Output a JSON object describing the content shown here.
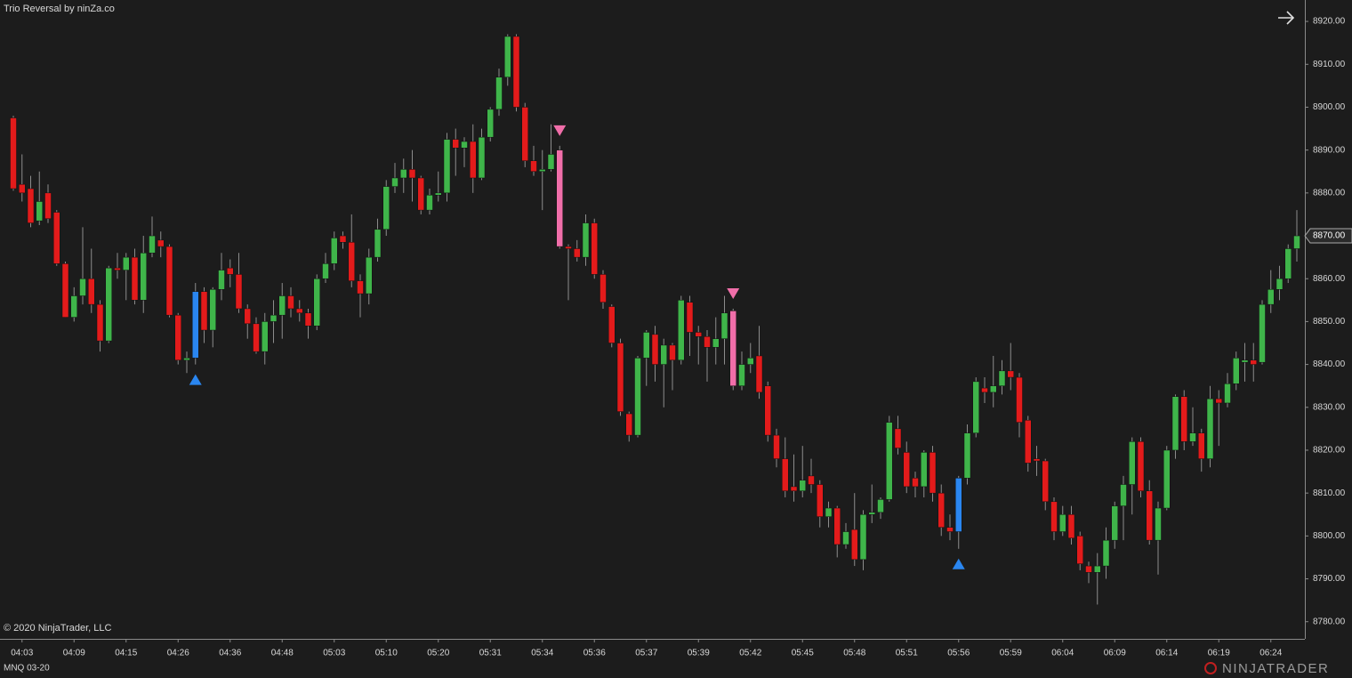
{
  "chart_data": {
    "type": "candlestick",
    "title": "Trio Reversal by ninZa.co",
    "copyright": "© 2020 NinjaTrader, LLC",
    "instrument": "MNQ 03-20",
    "logo": "NINJATRADER",
    "up_color": "#3fb54a",
    "down_color": "#e31b1b",
    "wick_color": "#8c8c8c",
    "categories": [
      null,
      "04:03",
      null,
      null,
      null,
      null,
      null,
      "04:09",
      null,
      null,
      null,
      null,
      null,
      "04:15",
      null,
      null,
      null,
      null,
      null,
      "04:26",
      null,
      null,
      null,
      null,
      null,
      "04:36",
      null,
      null,
      null,
      null,
      null,
      "04:48",
      null,
      null,
      null,
      null,
      null,
      "05:03",
      null,
      null,
      null,
      null,
      null,
      "05:10",
      null,
      null,
      null,
      null,
      null,
      "05:20",
      null,
      null,
      null,
      null,
      null,
      "05:31",
      null,
      null,
      null,
      null,
      null,
      "05:34",
      null,
      null,
      null,
      null,
      null,
      "05:36",
      null,
      null,
      null,
      null,
      null,
      "05:37",
      null,
      null,
      null,
      null,
      null,
      "05:39",
      null,
      null,
      null,
      null,
      null,
      "05:42",
      null,
      null,
      null,
      null,
      null,
      "05:45",
      null,
      null,
      null,
      null,
      null,
      "05:48",
      null,
      null,
      null,
      null,
      null,
      "05:51",
      null,
      null,
      null,
      null,
      null,
      "05:56",
      null,
      null,
      null,
      null,
      null,
      "05:59",
      null,
      null,
      null,
      null,
      null,
      "06:04",
      null,
      null,
      null,
      null,
      null,
      "06:09",
      null,
      null,
      null,
      null,
      null,
      "06:14",
      null,
      null,
      null,
      null,
      null,
      "06:19",
      null,
      null,
      null,
      null,
      null,
      "06:24",
      null,
      null,
      null
    ],
    "open": [
      8897.5,
      8882,
      8881,
      8873.5,
      8880,
      8875.5,
      8863.5,
      8851,
      8856,
      8860,
      8854,
      8845.5,
      8862.5,
      8862,
      8865,
      8855,
      8866,
      8869,
      8867.5,
      8851.5,
      8841,
      8841.5,
      8857,
      8848,
      8857.5,
      8862.5,
      8861,
      8853,
      8849.5,
      8843,
      8850,
      8851.5,
      8856,
      8853,
      8852,
      8849,
      8860,
      8863.5,
      8870,
      8868.5,
      8859.5,
      8856.5,
      8865,
      8871.5,
      8881.5,
      8883.5,
      8885.5,
      8883.5,
      8876,
      8879.5,
      8880,
      8892.5,
      8890.5,
      8892,
      8883.5,
      8893,
      8899.5,
      8907,
      8916.5,
      8900,
      8887.5,
      8885,
      8885.5,
      8890,
      8867.5,
      8867,
      8865,
      8873,
      8861,
      8853.5,
      8845,
      8828.5,
      8823.5,
      8841.5,
      8847,
      8840,
      8844.5,
      8841,
      8854.5,
      8847.5,
      8846.5,
      8844,
      8846,
      8852.5,
      8835,
      8840,
      8842,
      8835,
      8823.5,
      8818,
      8811.5,
      8810.5,
      8814,
      8812,
      8804.5,
      8806.5,
      8798,
      8801.5,
      8794.5,
      8805,
      8805.5,
      8808.5,
      8825,
      8819.5,
      8813.5,
      8811.5,
      8819.5,
      8810,
      8802,
      8801,
      8813.5,
      8824,
      8834.5,
      8833.5,
      8835,
      8838.5,
      8837,
      8827,
      8818,
      8817.5,
      8808,
      8801,
      8805,
      8800,
      8793,
      8791.5,
      8793,
      8799,
      8807,
      8812,
      8822,
      8810.5,
      8799,
      8806.5,
      8820,
      8832.5,
      8822,
      8824,
      8818,
      8832,
      8831,
      8835.5,
      8840.5,
      8841,
      8840.5,
      8854,
      8857.5,
      8860,
      8867
    ],
    "high": [
      8898,
      8889,
      8884,
      8885,
      8882,
      8876,
      8864,
      8858,
      8872,
      8867,
      8855,
      8863,
      8866,
      8866,
      8867,
      8870,
      8874.5,
      8871,
      8868,
      8852,
      8843,
      8859,
      8858,
      8858,
      8866,
      8864.5,
      8866,
      8854,
      8851,
      8852,
      8855,
      8859,
      8858,
      8855,
      8853,
      8861,
      8866,
      8871,
      8871,
      8875,
      8861,
      8867,
      8874,
      8883,
      8887,
      8888,
      8890,
      8884,
      8881,
      8885,
      8894,
      8895,
      8893,
      8896,
      8895,
      8900,
      8909,
      8917,
      8917,
      8901,
      8891,
      8890,
      8896,
      8891,
      8868,
      8869,
      8875,
      8874,
      8862,
      8854,
      8846,
      8829,
      8842,
      8848,
      8849,
      8846,
      8845,
      8856,
      8856,
      8849,
      8848,
      8851,
      8856,
      8853,
      8843,
      8845,
      8849,
      8836,
      8825,
      8823,
      8819,
      8821,
      8818,
      8813,
      8808,
      8807,
      8803,
      8810,
      8806,
      8812,
      8809,
      8828,
      8828,
      8822,
      8815,
      8820,
      8821,
      8812,
      8805,
      8814,
      8826,
      8837,
      8837,
      8842,
      8841,
      8845,
      8838,
      8828,
      8821,
      8818,
      8809,
      8807,
      8807,
      8801,
      8794,
      8796,
      8802,
      8808,
      8814,
      8823,
      8823,
      8813,
      8808,
      8821,
      8833,
      8834,
      8830,
      8825,
      8835,
      8834,
      8838,
      8843,
      8845,
      8845,
      8855,
      8862,
      8863,
      8868,
      8876
    ],
    "low": [
      8880.5,
      8878,
      8872,
      8872.5,
      8873,
      8863,
      8851,
      8850,
      8854,
      8852,
      8843,
      8845,
      8860,
      8855,
      8854,
      8852,
      8865,
      8865,
      8851,
      8840,
      8838,
      8840,
      8845,
      8844,
      8855,
      8858,
      8852,
      8846,
      8842.5,
      8840,
      8845,
      8846,
      8851,
      8850,
      8846,
      8848,
      8859,
      8862,
      8867,
      8858,
      8851,
      8854,
      8864,
      8870,
      8880,
      8880,
      8878,
      8875,
      8875,
      8878,
      8878,
      8884,
      8886,
      8880,
      8883,
      8892,
      8898,
      8905,
      8899,
      8886,
      8884,
      8876,
      8885,
      8867,
      8855,
      8864,
      8863,
      8860,
      8853,
      8844,
      8828,
      8822,
      8823,
      8835,
      8836,
      8830,
      8834,
      8840,
      8842,
      8840,
      8836,
      8840,
      8840,
      8834,
      8834,
      8838,
      8832,
      8822,
      8816,
      8809,
      8808,
      8809,
      8810,
      8802,
      8802,
      8795,
      8797,
      8793,
      8792,
      8803,
      8804,
      8808,
      8819,
      8810,
      8809,
      8809,
      8808,
      8800,
      8799,
      8797,
      8812,
      8823,
      8831,
      8830,
      8833,
      8834,
      8823,
      8815,
      8814,
      8806,
      8799,
      8800,
      8798,
      8792,
      8789,
      8784,
      8790,
      8797,
      8799,
      8805,
      8809,
      8798,
      8791,
      8806,
      8818,
      8820,
      8821,
      8815,
      8816,
      8821,
      8830,
      8834,
      8836,
      8836,
      8840,
      8852,
      8855,
      8859,
      8864
    ],
    "close": [
      8881,
      8880,
      8873,
      8878,
      8874,
      8863.5,
      8851,
      8856,
      8860,
      8854,
      8845.5,
      8862.5,
      8862,
      8865,
      8855,
      8866,
      8870,
      8867.5,
      8851.5,
      8841,
      8841.5,
      8857,
      8848,
      8857.5,
      8862,
      8861,
      8853,
      8849.5,
      8843,
      8850,
      8851.5,
      8856,
      8853,
      8852,
      8849,
      8860,
      8863.5,
      8869.5,
      8868.5,
      8859.5,
      8856.5,
      8865,
      8871.5,
      8881.5,
      8883.5,
      8885.5,
      8883.5,
      8876,
      8879.5,
      8880,
      8892.5,
      8890.5,
      8892,
      8883.5,
      8893,
      8899.5,
      8907,
      8916.5,
      8900,
      8887.5,
      8885,
      8885.5,
      8889,
      8867.5,
      8867,
      8865,
      8873,
      8861,
      8854.5,
      8845,
      8829,
      8823.5,
      8841.5,
      8847.5,
      8840,
      8844.5,
      8841,
      8855,
      8847.5,
      8846.5,
      8844,
      8846,
      8852,
      8835,
      8840,
      8841.5,
      8833.5,
      8823.5,
      8818,
      8810.5,
      8810.5,
      8813,
      8812,
      8804.5,
      8806.5,
      8798,
      8801,
      8794.5,
      8805,
      8805.5,
      8808.5,
      8826.5,
      8820.5,
      8811.5,
      8811.5,
      8819.5,
      8810,
      8802,
      8801,
      8813.5,
      8824,
      8836,
      8833.5,
      8835,
      8838.5,
      8837,
      8826.5,
      8817,
      8817.5,
      8808,
      8801,
      8805,
      8799.5,
      8793.5,
      8791.5,
      8793,
      8799,
      8807,
      8812,
      8822,
      8810.5,
      8799,
      8806.5,
      8820,
      8832.5,
      8822,
      8824,
      8818,
      8832,
      8831,
      8835.5,
      8841.5,
      8841,
      8840,
      8854,
      8857.5,
      8860,
      8867,
      8870
    ],
    "signals": [
      {
        "index": 21,
        "direction": "up",
        "color": "#2a86f0"
      },
      {
        "index": 63,
        "direction": "down",
        "color": "#f06ea9"
      },
      {
        "index": 83,
        "direction": "down",
        "color": "#f06ea9"
      },
      {
        "index": 109,
        "direction": "up",
        "color": "#2a86f0"
      }
    ],
    "ylim": [
      8776,
      8925
    ],
    "yticks": [
      {
        "value": 8780,
        "label": "8780.00"
      },
      {
        "value": 8790,
        "label": "8790.00"
      },
      {
        "value": 8800,
        "label": "8800.00"
      },
      {
        "value": 8810,
        "label": "8810.00"
      },
      {
        "value": 8820,
        "label": "8820.00"
      },
      {
        "value": 8830,
        "label": "8830.00"
      },
      {
        "value": 8840,
        "label": "8840.00"
      },
      {
        "value": 8850,
        "label": "8850.00"
      },
      {
        "value": 8860,
        "label": "8860.00"
      },
      {
        "value": 8870,
        "label": "8870.00"
      },
      {
        "value": 8880,
        "label": "8880.00"
      },
      {
        "value": 8890,
        "label": "8890.00"
      },
      {
        "value": 8900,
        "label": "8900.00"
      },
      {
        "value": 8910,
        "label": "8910.00"
      },
      {
        "value": 8920,
        "label": "8920.00"
      }
    ],
    "last_price": {
      "value": 8870,
      "label": "8870.00"
    }
  }
}
